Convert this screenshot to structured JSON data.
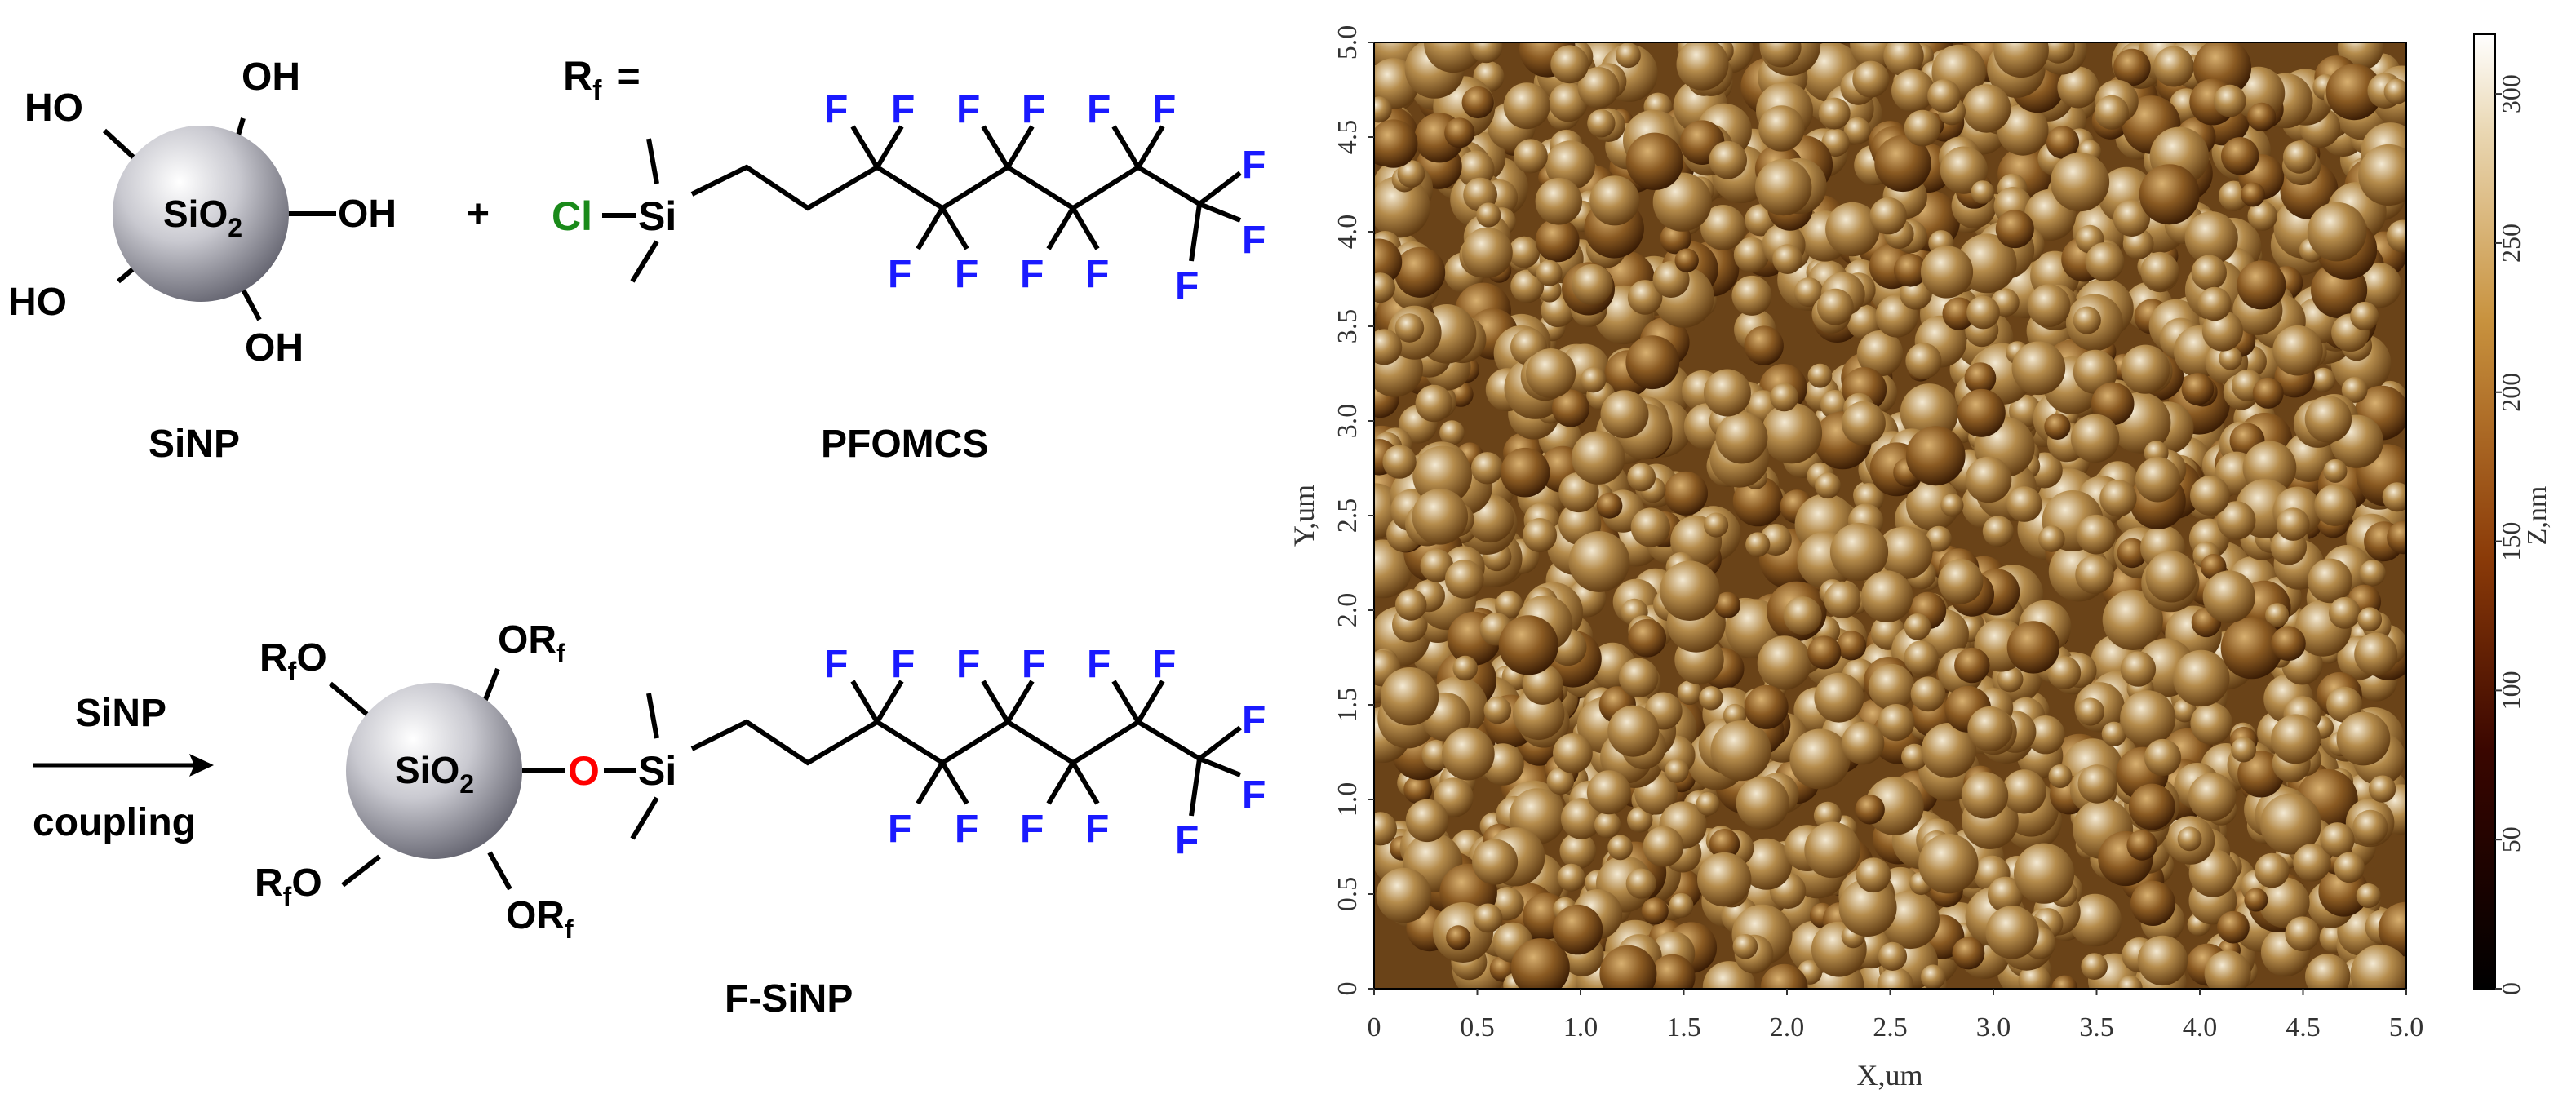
{
  "scheme": {
    "reactant1": {
      "groups": [
        "HO",
        "OH",
        "OH",
        "HO",
        "OH"
      ],
      "core": "SiO",
      "core_sub": "2",
      "name": "SiNP"
    },
    "plus": "+",
    "rf_def": {
      "letter": "R",
      "sub": "f",
      "eq": "="
    },
    "reagent": {
      "cl": "Cl",
      "si": "Si",
      "f": "F",
      "name": "PFOMCS"
    },
    "arrow": {
      "above": "SiNP",
      "below": "coupling"
    },
    "product": {
      "core": "SiO",
      "core_sub": "2",
      "groups": [
        {
          "pre": "R",
          "sub": "f",
          "post": "O"
        },
        {
          "pre": "OR",
          "sub": "f",
          "post": ""
        },
        {
          "pre": "R",
          "sub": "f",
          "post": "O"
        },
        {
          "pre": "OR",
          "sub": "f",
          "post": ""
        }
      ],
      "o": "O",
      "si": "Si",
      "f": "F",
      "name": "F-SiNP"
    },
    "colors": {
      "chlorine": "#1a8a1a",
      "fluorine": "#1a1aff",
      "oxygen": "#ff0000",
      "bond": "#000000"
    }
  },
  "chart_data": {
    "type": "heatmap",
    "description_type": "AFM height image",
    "xlabel": "X,um",
    "ylabel": "Y,um",
    "xlim": [
      0,
      5.0
    ],
    "ylim": [
      0,
      5.0
    ],
    "x_ticks": [
      "0",
      "0.5",
      "1.0",
      "1.5",
      "2.0",
      "2.5",
      "3.0",
      "3.5",
      "4.0",
      "4.5",
      "5.0"
    ],
    "y_ticks": [
      "0",
      "0.5",
      "1.0",
      "1.5",
      "2.0",
      "2.5",
      "3.0",
      "3.5",
      "4.0",
      "4.5",
      "5.0"
    ],
    "colorbar": {
      "label": "Z,nm",
      "range": [
        0,
        320
      ],
      "ticks": [
        "0",
        "50",
        "100",
        "150",
        "200",
        "250",
        "300"
      ],
      "tick_values": [
        0,
        50,
        100,
        150,
        200,
        250,
        300
      ],
      "colors": [
        "#000000",
        "#5a0a00",
        "#a0500a",
        "#c8a060",
        "#ffffff"
      ]
    }
  }
}
